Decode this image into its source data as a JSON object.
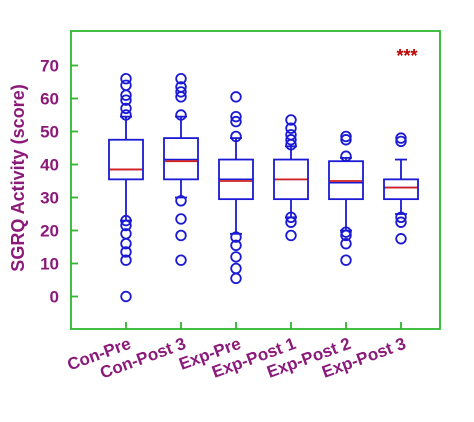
{
  "chart_data": {
    "type": "box",
    "ylabel": "SGRQ Activity (score)",
    "yticks": [
      0,
      10,
      20,
      30,
      40,
      50,
      60,
      70
    ],
    "ylim": [
      -10,
      80
    ],
    "grid": false,
    "significance": "***",
    "colors": {
      "frame": "#2db82d",
      "box": "#1a1ad4",
      "median": "#d42020",
      "text": "#8b1a7a",
      "significance": "#c00000"
    },
    "categories": [
      "Con-Pre",
      "Con-Post 3",
      "Exp-Pre",
      "Exp-Post 1",
      "Exp-Post 2",
      "Exp-Post 3"
    ],
    "boxes": [
      {
        "label": "Con-Pre",
        "whisker_low": 23,
        "q1": 35.5,
        "median": 38.5,
        "mean": 38.5,
        "q3": 47.5,
        "whisker_high": 54.5,
        "outliers": [
          0,
          11,
          13.5,
          16,
          19,
          21.5,
          23,
          55,
          57,
          59.5,
          61,
          64,
          66
        ]
      },
      {
        "label": "Con-Post 3",
        "whisker_low": 30,
        "q1": 35.5,
        "median": 41.5,
        "mean": 41,
        "q3": 48,
        "whisker_high": 54.5,
        "outliers": [
          11,
          18.5,
          23.5,
          29,
          55,
          60.5,
          62,
          63.5,
          66
        ]
      },
      {
        "label": "Exp-Pre",
        "whisker_low": 19,
        "q1": 29.5,
        "median": 35.5,
        "mean": 35,
        "q3": 41.5,
        "whisker_high": 48,
        "outliers": [
          5.5,
          8.5,
          12,
          15.5,
          18,
          48.5,
          53,
          54.5,
          60.5
        ]
      },
      {
        "label": "Exp-Post 1",
        "whisker_low": 24,
        "q1": 29.5,
        "median": 35.5,
        "mean": 35.5,
        "q3": 41.5,
        "whisker_high": 45.5,
        "outliers": [
          18.5,
          22.5,
          24,
          46,
          47.5,
          49,
          51,
          53.5
        ]
      },
      {
        "label": "Exp-Post 2",
        "whisker_low": 20,
        "q1": 29.5,
        "median": 34.5,
        "mean": 35,
        "q3": 41,
        "whisker_high": 42,
        "outliers": [
          11,
          16,
          18.5,
          19.5,
          42.5,
          47.5,
          48.5
        ]
      },
      {
        "label": "Exp-Post 3",
        "whisker_low": 25,
        "q1": 29.5,
        "median": 33,
        "mean": 33,
        "q3": 35.5,
        "whisker_high": 41.5,
        "outliers": [
          17.5,
          22.5,
          24,
          47,
          48
        ]
      }
    ]
  }
}
